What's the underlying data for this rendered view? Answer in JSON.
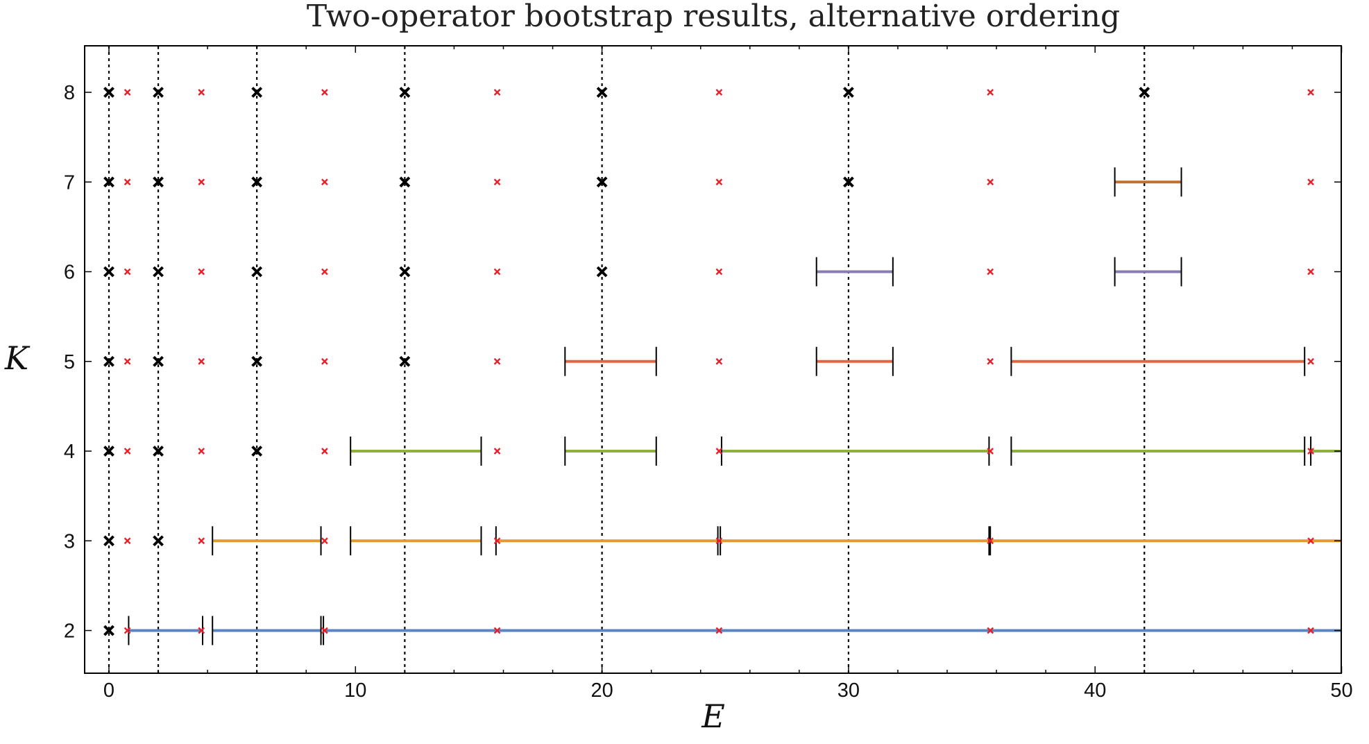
{
  "chart_data": {
    "type": "scatter",
    "title": "Two-operator bootstrap results, alternative ordering",
    "xlabel": "E",
    "ylabel": "K",
    "xlim": [
      -1,
      50
    ],
    "ylim": [
      1.5,
      8.5
    ],
    "xticks": [
      0,
      10,
      20,
      30,
      40,
      50
    ],
    "yticks": [
      2,
      3,
      4,
      5,
      6,
      7,
      8
    ],
    "grid": "dashed vertical reference lines at E = 0, 2, 6, 12, 20, 30, 42",
    "reference_lines_x": [
      0,
      2,
      6,
      12,
      20,
      30,
      42
    ],
    "exact_points": [
      {
        "K": 8,
        "E": [
          0,
          2,
          6,
          12,
          20,
          30,
          42
        ]
      },
      {
        "K": 7,
        "E": [
          0,
          2,
          6,
          12,
          20,
          30
        ]
      },
      {
        "K": 6,
        "E": [
          0,
          2,
          6,
          12,
          20
        ]
      },
      {
        "K": 5,
        "E": [
          0,
          2,
          6,
          12
        ]
      },
      {
        "K": 4,
        "E": [
          0,
          2,
          6
        ]
      },
      {
        "K": 3,
        "E": [
          0,
          2
        ]
      },
      {
        "K": 2,
        "E": [
          0
        ]
      }
    ],
    "red_markers_E": [
      0.75,
      3.75,
      8.75,
      15.75,
      24.75,
      35.75,
      48.75
    ],
    "red_marker_color": "#e8202a",
    "interval_series": [
      {
        "K": 2,
        "color": "#5b84c1",
        "intervals": [
          [
            0.8,
            3.8
          ],
          [
            4.2,
            8.6
          ],
          [
            8.7,
            50
          ]
        ]
      },
      {
        "K": 3,
        "color": "#e49b2e",
        "intervals": [
          [
            4.2,
            8.6
          ],
          [
            9.8,
            15.1
          ],
          [
            15.7,
            24.7
          ],
          [
            24.8,
            35.7
          ],
          [
            35.75,
            50
          ]
        ]
      },
      {
        "K": 4,
        "color": "#8fb03b",
        "intervals": [
          [
            9.8,
            15.1
          ],
          [
            18.5,
            22.2
          ],
          [
            24.85,
            35.7
          ],
          [
            36.6,
            48.5
          ],
          [
            48.75,
            50
          ]
        ]
      },
      {
        "K": 5,
        "color": "#e2653e",
        "intervals": [
          [
            18.5,
            22.2
          ],
          [
            28.7,
            31.8
          ],
          [
            36.6,
            48.5
          ]
        ]
      },
      {
        "K": 6,
        "color": "#8a7ab4",
        "intervals": [
          [
            28.7,
            31.8
          ],
          [
            40.8,
            43.5
          ]
        ]
      },
      {
        "K": 7,
        "color": "#c26f28",
        "intervals": [
          [
            40.8,
            43.5
          ]
        ]
      }
    ]
  }
}
